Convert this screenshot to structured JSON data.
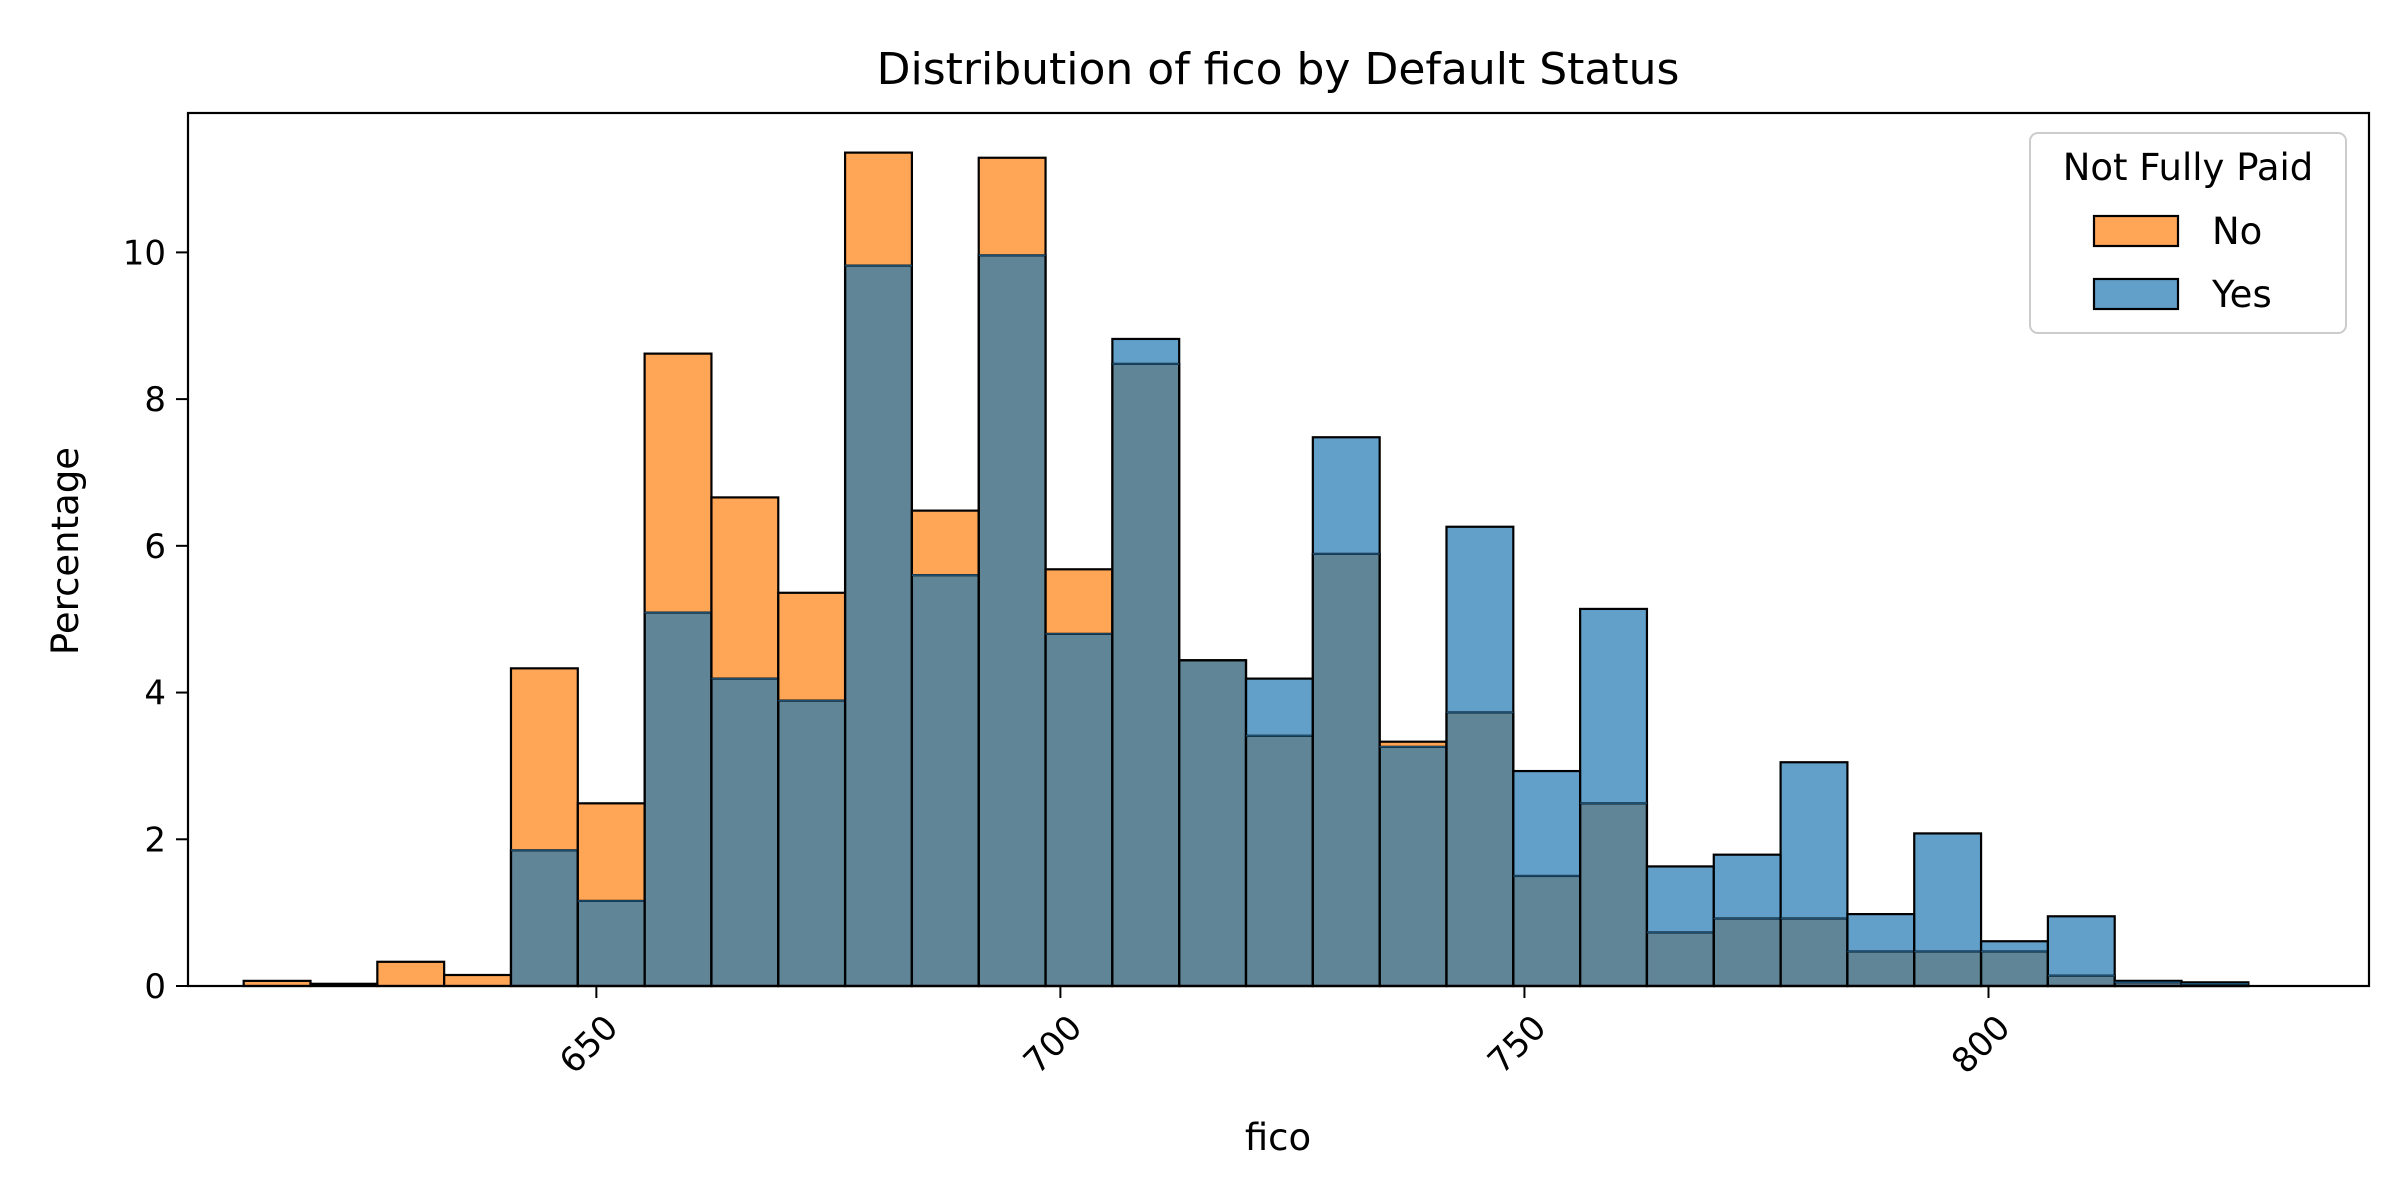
{
  "chart_data": {
    "type": "histogram",
    "title": "Distribution of fico by Default Status",
    "xlabel": "fico",
    "ylabel": "Percentage",
    "xlim": [
      606,
      841
    ],
    "ylim": [
      0,
      11.9
    ],
    "xticks": [
      650,
      700,
      750,
      800
    ],
    "yticks": [
      0,
      2,
      4,
      6,
      8,
      10
    ],
    "bin_start": 612,
    "bin_width": 7.2,
    "grid": false,
    "legend": {
      "title": "Not Fully Paid",
      "position": "top-right",
      "entries": [
        {
          "label": "No",
          "color": "#ff7f0e"
        },
        {
          "label": "Yes",
          "color": "#1f77b4"
        }
      ]
    },
    "colors": {
      "No": "#ff7f0e",
      "Yes": "#1f77b4",
      "overlap": "#5f8597"
    },
    "series": [
      {
        "key": "No",
        "values": [
          0.07,
          0.03,
          0.33,
          0.15,
          4.33,
          2.49,
          8.62,
          6.66,
          5.36,
          11.36,
          6.48,
          11.29,
          5.68,
          8.48,
          4.44,
          3.41,
          5.89,
          3.33,
          3.73,
          1.5,
          2.49,
          0.73,
          0.92,
          0.92,
          0.47,
          0.47,
          0.47,
          0.14,
          0.07,
          0.05
        ]
      },
      {
        "key": "Yes",
        "values": [
          0.0,
          0.0,
          0.0,
          0.0,
          1.85,
          1.16,
          5.09,
          4.19,
          3.89,
          9.82,
          5.6,
          9.96,
          4.8,
          8.82,
          4.44,
          4.19,
          7.48,
          3.26,
          6.26,
          2.93,
          5.14,
          1.63,
          1.79,
          3.05,
          0.98,
          2.08,
          0.61,
          0.95,
          0.05,
          0.03
        ]
      }
    ]
  }
}
